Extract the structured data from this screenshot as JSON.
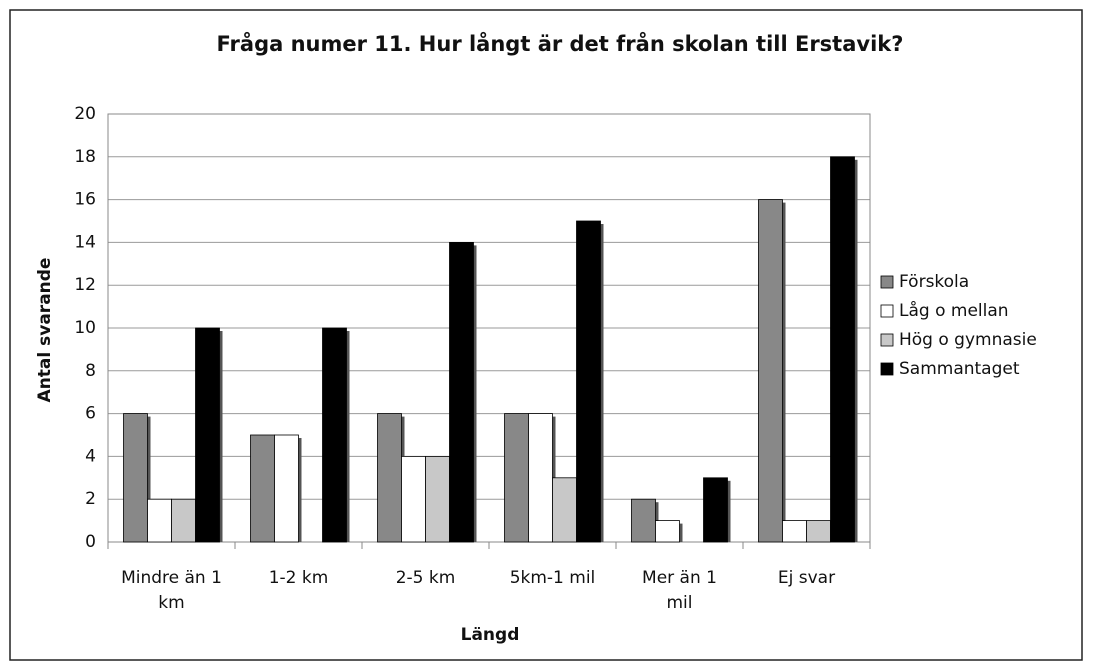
{
  "chart_data": {
    "type": "bar",
    "title": "Fråga numer 11. Hur långt är det från skolan till Erstavik?",
    "x_label": "Längd",
    "y_label": "Antal svarande",
    "categories": [
      "Mindre än 1 km",
      "1-2 km",
      "2-5 km",
      "5km-1 mil",
      "Mer än 1 mil",
      "Ej svar"
    ],
    "series": [
      {
        "name": "Förskola",
        "color": "#888888",
        "values": [
          6,
          5,
          6,
          6,
          2,
          16
        ]
      },
      {
        "name": "Låg o mellan",
        "color": "#ffffff",
        "values": [
          2,
          5,
          4,
          6,
          1,
          1
        ]
      },
      {
        "name": "Hög o gymnasie",
        "color": "#c8c8c8",
        "values": [
          2,
          0,
          4,
          3,
          0,
          1
        ]
      },
      {
        "name": "Sammantaget",
        "color": "#000000",
        "values": [
          10,
          10,
          14,
          15,
          3,
          18
        ]
      }
    ],
    "ylim": [
      0,
      20
    ],
    "yticks": [
      0,
      2,
      4,
      6,
      8,
      10,
      12,
      14,
      16,
      18,
      20
    ],
    "grid": true,
    "legend": "right"
  }
}
